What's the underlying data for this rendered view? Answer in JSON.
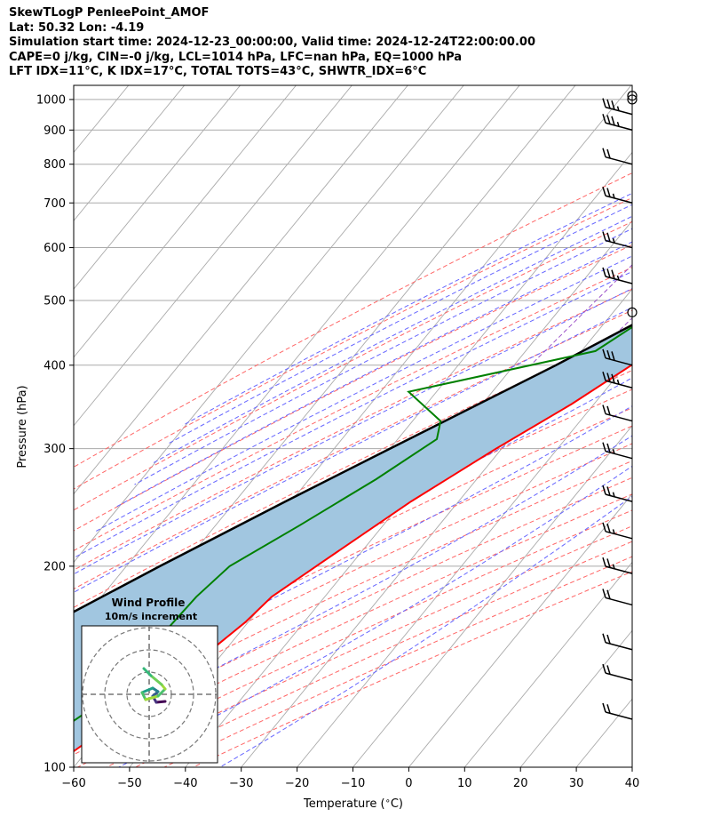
{
  "header": {
    "line1": "SkewTLogP PenleePoint_AMOF",
    "line2": "Lat: 50.32   Lon: -4.19",
    "line3": "Simulation start time: 2024-12-23_00:00:00, Valid time: 2024-12-24T22:00:00.00",
    "line4": "CAPE=0 j/kg, CIN=-0 j/kg, LCL=1014 hPa, LFC=nan hPa, EQ=1000 hPa",
    "line5": "LFT IDX=11°C, K IDX=17°C, TOTAL TOTS=43°C, SHWTR_IDX=6°C"
  },
  "hodograph": {
    "title": "Wind Profile",
    "subtitle": "10m/s increment"
  },
  "colors": {
    "temperature": "#ff0000",
    "dewpoint": "#008000",
    "parcel": "#000000",
    "shade": "#a1c6e0",
    "dry_adiabat": "#ff6666",
    "moist_adiabat": "#6666ff",
    "mixing_ratio": "#9b4fc8",
    "isotherm": "#aaaaaa"
  },
  "chart_data": {
    "type": "skewt",
    "xlabel": "Temperature ($^\\circ$C)",
    "ylabel": "Pressure (hPa)",
    "xlim": [
      -60,
      40
    ],
    "ylim": [
      1050,
      100
    ],
    "y_log": true,
    "grid": true,
    "x_ticks": [
      "−60",
      "−50",
      "−40",
      "−30",
      "−20",
      "−10",
      "0",
      "10",
      "20",
      "30",
      "40"
    ],
    "y_ticks": [
      "100",
      "200",
      "300",
      "400",
      "500",
      "600",
      "700",
      "800",
      "900",
      "1000"
    ],
    "temperature_profile": [
      {
        "p": 1013,
        "t": 10.5
      },
      {
        "p": 1000,
        "t": 13.5
      },
      {
        "p": 970,
        "t": 15.5
      },
      {
        "p": 930,
        "t": 16.0
      },
      {
        "p": 870,
        "t": 15.0
      },
      {
        "p": 800,
        "t": 10.5
      },
      {
        "p": 700,
        "t": 2.0
      },
      {
        "p": 600,
        "t": -6.5
      },
      {
        "p": 500,
        "t": -12.0
      },
      {
        "p": 400,
        "t": -19.0
      },
      {
        "p": 350,
        "t": -24.0
      },
      {
        "p": 300,
        "t": -31.0
      },
      {
        "p": 250,
        "t": -38.5
      },
      {
        "p": 200,
        "t": -46.0
      },
      {
        "p": 180,
        "t": -49.5
      },
      {
        "p": 165,
        "t": -50.5
      },
      {
        "p": 150,
        "t": -52.5
      },
      {
        "p": 130,
        "t": -56.0
      },
      {
        "p": 100,
        "t": -64.0
      }
    ],
    "dewpoint_profile": [
      {
        "p": 1013,
        "t": 10.0
      },
      {
        "p": 990,
        "t": 8.0
      },
      {
        "p": 950,
        "t": 5.0
      },
      {
        "p": 900,
        "t": 3.0
      },
      {
        "p": 850,
        "t": 1.0
      },
      {
        "p": 800,
        "t": -2.0
      },
      {
        "p": 700,
        "t": -8.0
      },
      {
        "p": 600,
        "t": -14.0
      },
      {
        "p": 500,
        "t": -21.0
      },
      {
        "p": 420,
        "t": -27.5
      },
      {
        "p": 365,
        "t": -55.0
      },
      {
        "p": 330,
        "t": -45.0
      },
      {
        "p": 310,
        "t": -43.0
      },
      {
        "p": 270,
        "t": -48.0
      },
      {
        "p": 230,
        "t": -55.0
      },
      {
        "p": 200,
        "t": -61.5
      },
      {
        "p": 180,
        "t": -63.0
      },
      {
        "p": 160,
        "t": -63.5
      },
      {
        "p": 140,
        "t": -63.5
      },
      {
        "p": 120,
        "t": -66.0
      },
      {
        "p": 110,
        "t": -69.0
      },
      {
        "p": 100,
        "t": -74.0
      }
    ],
    "parcel_profile": [
      {
        "p": 1013,
        "t": 10.5
      },
      {
        "p": 950,
        "t": 7.7
      },
      {
        "p": 850,
        "t": 3.8
      },
      {
        "p": 700,
        "t": -4.0
      },
      {
        "p": 600,
        "t": -11.0
      },
      {
        "p": 500,
        "t": -20.0
      },
      {
        "p": 400,
        "t": -32.5
      },
      {
        "p": 300,
        "t": -50.0
      },
      {
        "p": 250,
        "t": -61.0
      },
      {
        "p": 200,
        "t": -74.0
      },
      {
        "p": 150,
        "t": -90.0
      },
      {
        "p": 100,
        "t": -115.0
      }
    ],
    "wind_barbs": [
      {
        "p": 1013,
        "speed_kt": 0
      },
      {
        "p": 1000,
        "speed_kt": 0
      },
      {
        "p": 950,
        "speed_kt": 25
      },
      {
        "p": 900,
        "speed_kt": 25
      },
      {
        "p": 800,
        "speed_kt": 20
      },
      {
        "p": 700,
        "speed_kt": 15
      },
      {
        "p": 600,
        "speed_kt": 15
      },
      {
        "p": 530,
        "speed_kt": 25
      },
      {
        "p": 480,
        "speed_kt": 0
      },
      {
        "p": 400,
        "speed_kt": 30
      },
      {
        "p": 370,
        "speed_kt": 25
      },
      {
        "p": 330,
        "speed_kt": 20
      },
      {
        "p": 290,
        "speed_kt": 15
      },
      {
        "p": 250,
        "speed_kt": 15
      },
      {
        "p": 220,
        "speed_kt": 15
      },
      {
        "p": 195,
        "speed_kt": 15
      },
      {
        "p": 175,
        "speed_kt": 20
      },
      {
        "p": 150,
        "speed_kt": 20
      },
      {
        "p": 135,
        "speed_kt": 20
      },
      {
        "p": 118,
        "speed_kt": 20
      }
    ]
  }
}
